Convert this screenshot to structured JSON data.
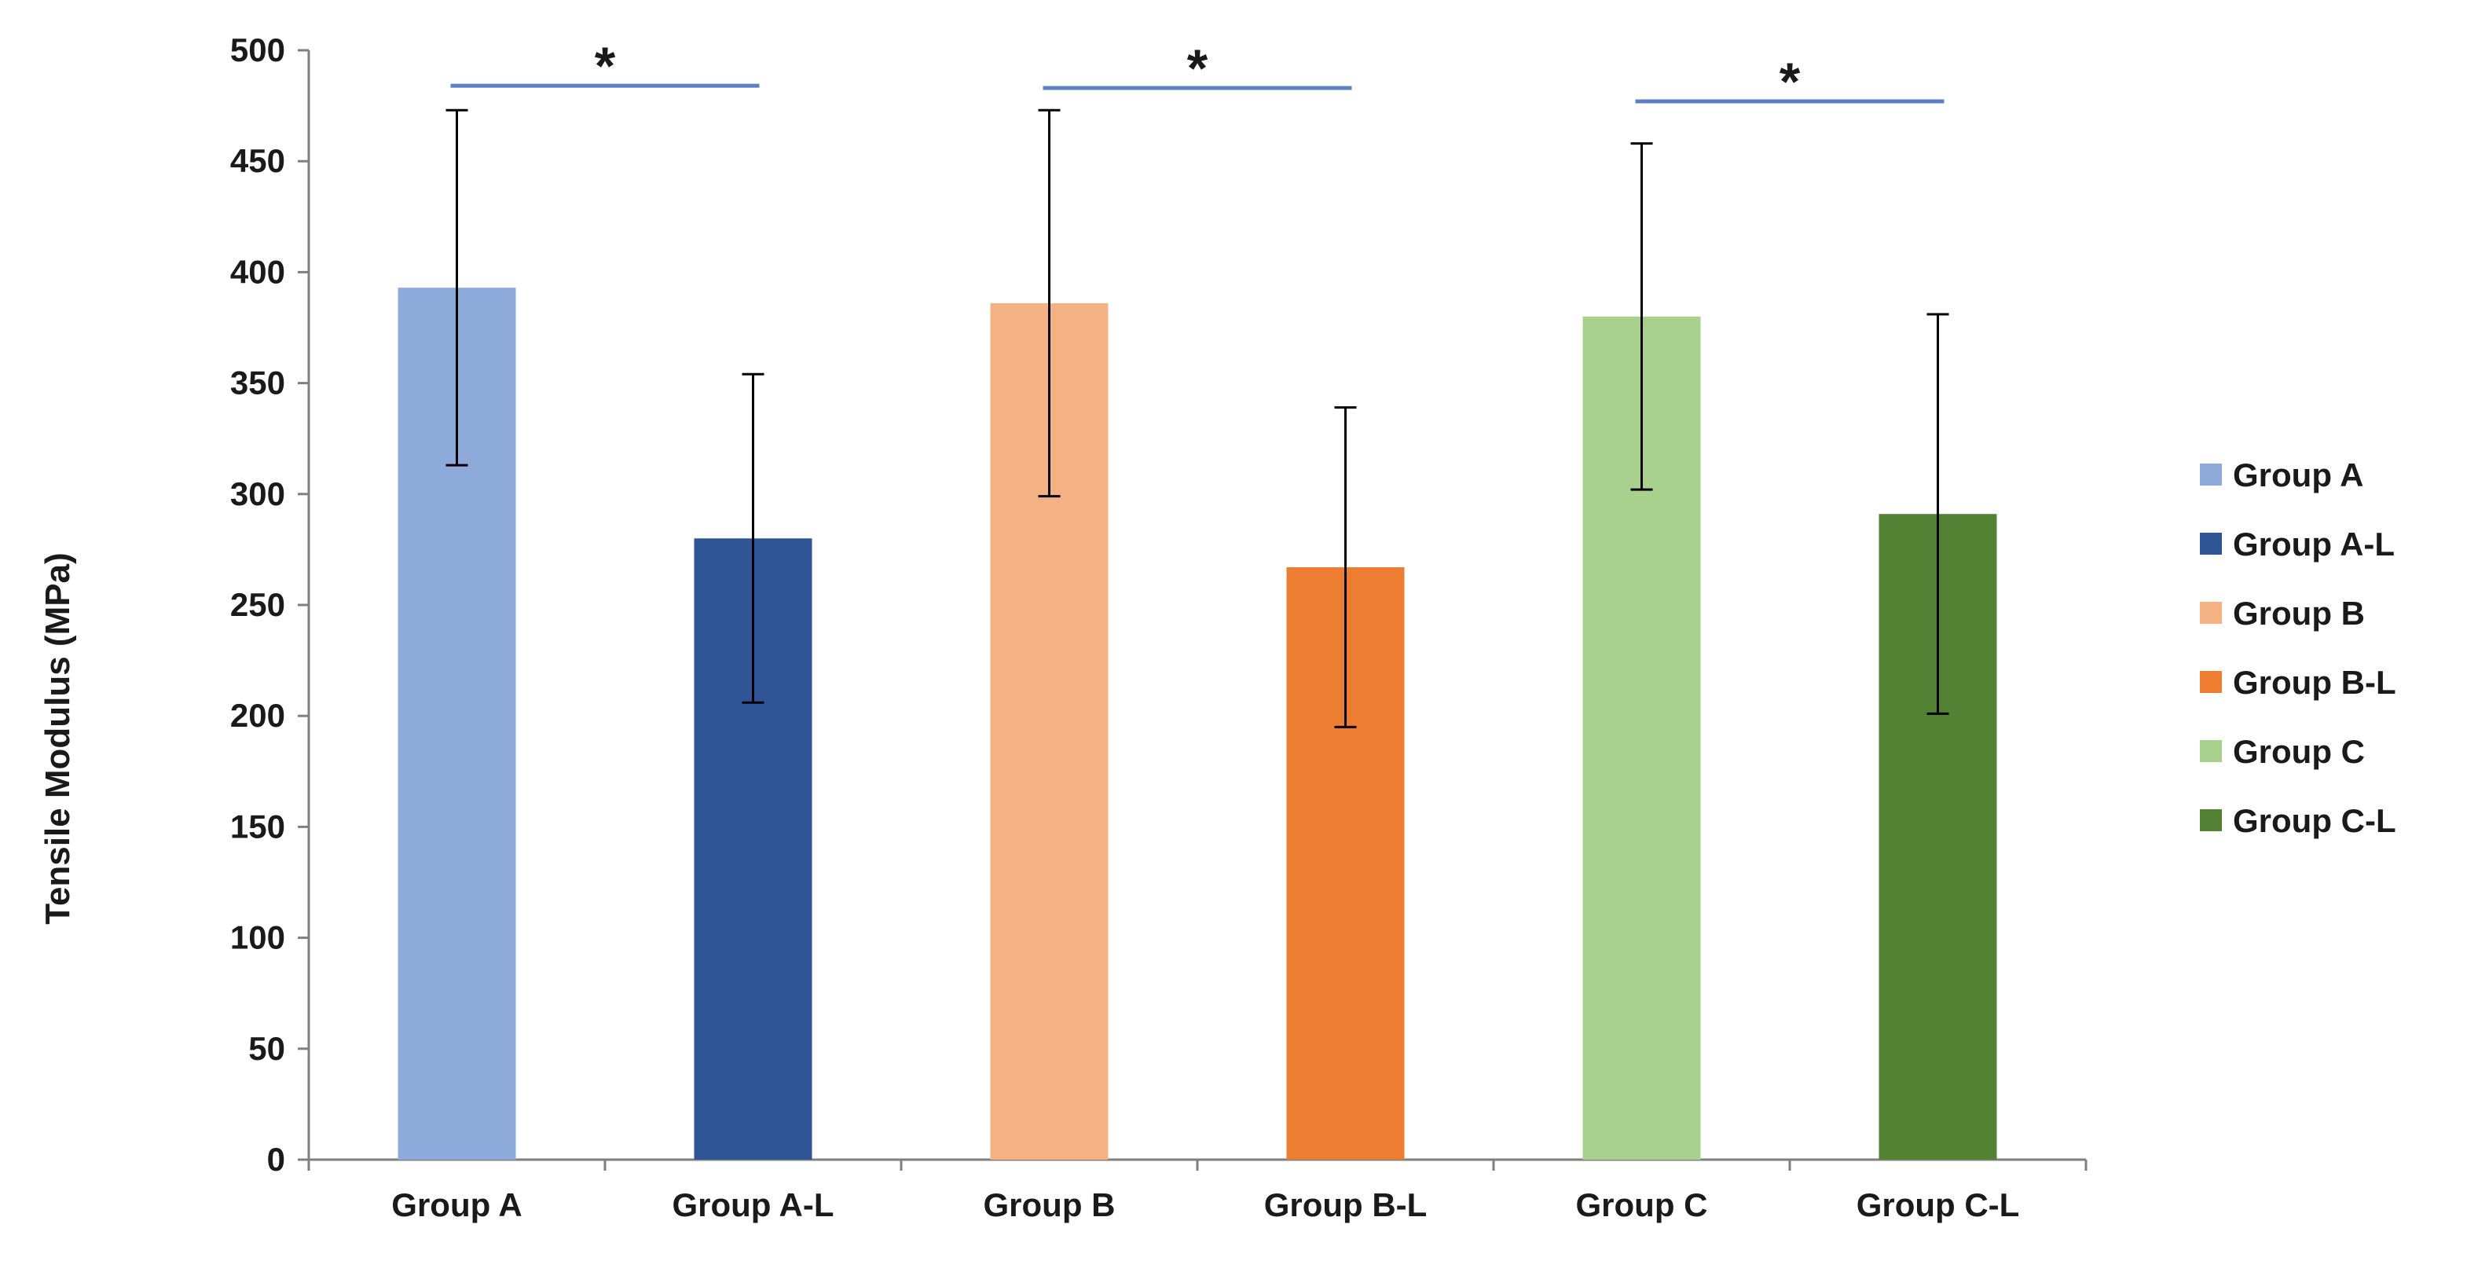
{
  "chart_data": {
    "type": "bar",
    "title": "",
    "xlabel": "",
    "ylabel": "Tensile Modulus (MPa)",
    "ylim": [
      0,
      500
    ],
    "ytick_step": 50,
    "grid": false,
    "legend_position": "right",
    "categories": [
      "Group A",
      "Group A-L",
      "Group B",
      "Group B-L",
      "Group C",
      "Group C-L"
    ],
    "values": [
      393,
      280,
      386,
      267,
      380,
      291
    ],
    "error": [
      80,
      74,
      87,
      72,
      78,
      90
    ],
    "colors": [
      "#8eaadb",
      "#2f5597",
      "#f4b183",
      "#ed7d31",
      "#a9d18e",
      "#548235"
    ],
    "significance": [
      {
        "from": 0,
        "to": 1,
        "label": "*",
        "value": 484
      },
      {
        "from": 2,
        "to": 3,
        "label": "*",
        "value": 483
      },
      {
        "from": 4,
        "to": 5,
        "label": "*",
        "value": 477
      }
    ],
    "legend": [
      "Group A",
      "Group A-L",
      "Group B",
      "Group B-L",
      "Group C",
      "Group C-L"
    ]
  }
}
